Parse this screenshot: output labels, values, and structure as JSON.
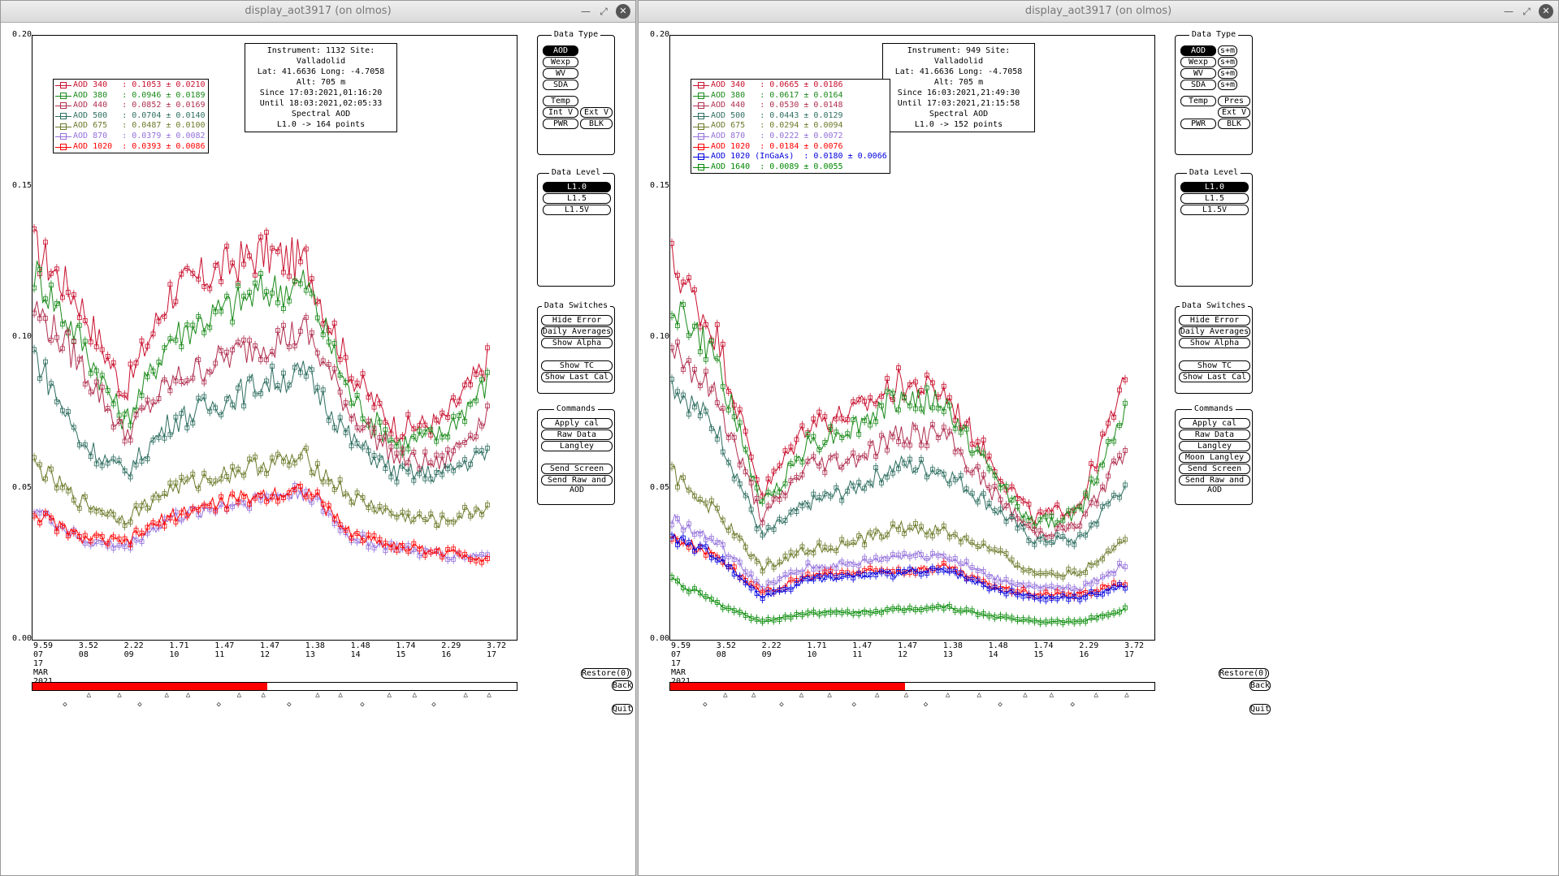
{
  "windows": [
    {
      "title": "display_aot3917 (on olmos)",
      "info": {
        "line1": "Instrument: 1132 Site: Valladolid",
        "line2": "Lat: 41.6636 Long: -4.7058 Alt: 705 m",
        "line3": "Since 17:03:2021,01:16:20",
        "line4": "Until 18:03:2021,02:05:33",
        "line5": "Spectral AOD",
        "line6": "L1.0 -> 164 points"
      },
      "legend": [
        {
          "text": "AOD 340   : 0.1053 ± 0.0210",
          "color": "#c8102e"
        },
        {
          "text": "AOD 380   : 0.0946 ± 0.0189",
          "color": "#1a8a1a"
        },
        {
          "text": "AOD 440   : 0.0852 ± 0.0169",
          "color": "#b03050"
        },
        {
          "text": "AOD 500   : 0.0704 ± 0.0140",
          "color": "#2e6e60"
        },
        {
          "text": "AOD 675   : 0.0487 ± 0.0100",
          "color": "#6b7a2a"
        },
        {
          "text": "AOD 870   : 0.0379 ± 0.0082",
          "color": "#9370db"
        },
        {
          "text": "AOD 1020  : 0.0393 ± 0.0086",
          "color": "#ff0000"
        }
      ],
      "yticks": [
        "0.20",
        "0.15",
        "0.10",
        "0.05",
        "0.00"
      ],
      "xticks": [
        {
          "top": "9.59",
          "bottom": "07"
        },
        {
          "top": "3.52",
          "bottom": "08"
        },
        {
          "top": "2.22",
          "bottom": "09"
        },
        {
          "top": "1.71",
          "bottom": "10"
        },
        {
          "top": "1.47",
          "bottom": "11"
        },
        {
          "top": "1.47",
          "bottom": "12"
        },
        {
          "top": "1.38",
          "bottom": "13"
        },
        {
          "top": "1.48",
          "bottom": "14"
        },
        {
          "top": "1.74",
          "bottom": "15"
        },
        {
          "top": "2.29",
          "bottom": "16"
        },
        {
          "top": "3.72",
          "bottom": "17"
        }
      ],
      "date_labels": [
        "17",
        "MAR",
        "2021"
      ],
      "data_type": {
        "title": "Data Type",
        "buttons": [
          "AOD",
          "Wexp",
          "WV",
          "SDA",
          "Temp",
          "Int V",
          "Ext V",
          "PWR",
          "BLK"
        ]
      },
      "data_level": {
        "title": "Data Level",
        "buttons": [
          "L1.0",
          "L1.5",
          "L1.5V"
        ]
      },
      "data_switches": {
        "title": "Data Switches",
        "buttons": [
          "Hide Error Bars",
          "Daily Averages",
          "Show Alpha",
          "Show TC",
          "Show Last Cal"
        ]
      },
      "commands": {
        "title": "Commands",
        "buttons": [
          "Apply cal",
          "Raw Data",
          "Langley",
          "Send Screen",
          "Send Raw and AOD"
        ]
      },
      "restore": "Restore(0)",
      "back": "Back",
      "quit": "Quit",
      "progress": 0.485
    },
    {
      "title": "display_aot3917 (on olmos)",
      "info": {
        "line1": "Instrument: 949 Site: Valladolid",
        "line2": "Lat: 41.6636 Long: -4.7058 Alt: 705 m",
        "line3": "Since 16:03:2021,21:49:30",
        "line4": "Until 17:03:2021,21:15:58",
        "line5": "Spectral AOD",
        "line6": "L1.0 -> 152 points"
      },
      "legend": [
        {
          "text": "AOD 340   : 0.0665 ± 0.0186",
          "color": "#c8102e"
        },
        {
          "text": "AOD 380   : 0.0617 ± 0.0164",
          "color": "#1a8a1a"
        },
        {
          "text": "AOD 440   : 0.0530 ± 0.0148",
          "color": "#b03050"
        },
        {
          "text": "AOD 500   : 0.0443 ± 0.0129",
          "color": "#2e6e60"
        },
        {
          "text": "AOD 675   : 0.0294 ± 0.0094",
          "color": "#6b7a2a"
        },
        {
          "text": "AOD 870   : 0.0222 ± 0.0072",
          "color": "#9370db"
        },
        {
          "text": "AOD 1020  : 0.0184 ± 0.0076",
          "color": "#ff0000"
        },
        {
          "text": "AOD 1020 (InGaAs)  : 0.0180 ± 0.0066",
          "color": "#0000e0"
        },
        {
          "text": "AOD 1640  : 0.0089 ± 0.0055",
          "color": "#008800"
        }
      ],
      "yticks": [
        "0.20",
        "0.15",
        "0.10",
        "0.05",
        "0.00"
      ],
      "xticks": [
        {
          "top": "9.59",
          "bottom": "07"
        },
        {
          "top": "3.52",
          "bottom": "08"
        },
        {
          "top": "2.22",
          "bottom": "09"
        },
        {
          "top": "1.71",
          "bottom": "10"
        },
        {
          "top": "1.47",
          "bottom": "11"
        },
        {
          "top": "1.47",
          "bottom": "12"
        },
        {
          "top": "1.38",
          "bottom": "13"
        },
        {
          "top": "1.48",
          "bottom": "14"
        },
        {
          "top": "1.74",
          "bottom": "15"
        },
        {
          "top": "2.29",
          "bottom": "16"
        },
        {
          "top": "3.72",
          "bottom": "17"
        }
      ],
      "date_labels": [
        "17",
        "MAR",
        "2021"
      ],
      "data_type": {
        "title": "Data Type",
        "buttons": [
          "AOD",
          "s+m",
          "Wexp",
          "s+m",
          "WV",
          "s+m",
          "SDA",
          "s+m",
          "Temp",
          "Pres",
          "Ext V",
          "PWR",
          "BLK"
        ]
      },
      "data_level": {
        "title": "Data Level",
        "buttons": [
          "L1.0",
          "L1.5",
          "L1.5V"
        ]
      },
      "data_switches": {
        "title": "Data Switches",
        "buttons": [
          "Hide Error Bars",
          "Daily Averages",
          "Show Alpha",
          "Show TC",
          "Show Last Cal"
        ]
      },
      "commands": {
        "title": "Commands",
        "buttons": [
          "Apply cal",
          "Raw Data",
          "Langley",
          "Moon Langley",
          "Send Screen",
          "Send Raw and AOD"
        ]
      },
      "restore": "Restore(0)",
      "back": "Back",
      "quit": "Quit",
      "progress": 0.485
    }
  ],
  "chart_data": [
    {
      "type": "line",
      "x": [
        "07",
        "08",
        "09",
        "10",
        "11",
        "12",
        "13",
        "14",
        "15",
        "16",
        "17"
      ],
      "ylim": [
        0,
        0.2
      ],
      "series": [
        {
          "name": "AOD 340",
          "values": [
            0.13,
            0.112,
            0.082,
            0.115,
            0.122,
            0.128,
            0.125,
            0.088,
            0.07,
            0.072,
            0.092
          ]
        },
        {
          "name": "AOD 380",
          "values": [
            0.122,
            0.1,
            0.072,
            0.1,
            0.108,
            0.115,
            0.118,
            0.08,
            0.065,
            0.068,
            0.085
          ]
        },
        {
          "name": "AOD 440",
          "values": [
            0.11,
            0.092,
            0.068,
            0.085,
            0.092,
            0.098,
            0.102,
            0.075,
            0.06,
            0.058,
            0.075
          ]
        },
        {
          "name": "AOD 500",
          "values": [
            0.095,
            0.066,
            0.055,
            0.072,
            0.078,
            0.085,
            0.088,
            0.066,
            0.055,
            0.055,
            0.062
          ]
        },
        {
          "name": "AOD 675",
          "values": [
            0.058,
            0.046,
            0.04,
            0.05,
            0.054,
            0.058,
            0.06,
            0.047,
            0.041,
            0.039,
            0.044
          ]
        },
        {
          "name": "AOD 870",
          "values": [
            0.044,
            0.033,
            0.031,
            0.04,
            0.044,
            0.047,
            0.049,
            0.034,
            0.03,
            0.028,
            0.028
          ]
        },
        {
          "name": "AOD 1020",
          "values": [
            0.042,
            0.034,
            0.032,
            0.041,
            0.045,
            0.048,
            0.05,
            0.035,
            0.031,
            0.029,
            0.027
          ]
        }
      ]
    },
    {
      "type": "line",
      "x": [
        "07",
        "08",
        "09",
        "10",
        "11",
        "12",
        "13",
        "14",
        "15",
        "16",
        "17"
      ],
      "ylim": [
        0,
        0.2
      ],
      "series": [
        {
          "name": "AOD 340",
          "values": [
            0.125,
            0.1,
            0.048,
            0.072,
            0.075,
            0.085,
            0.082,
            0.06,
            0.04,
            0.045,
            0.085
          ]
        },
        {
          "name": "AOD 380",
          "values": [
            0.112,
            0.092,
            0.044,
            0.065,
            0.07,
            0.08,
            0.078,
            0.056,
            0.038,
            0.042,
            0.078
          ]
        },
        {
          "name": "AOD 440",
          "values": [
            0.098,
            0.08,
            0.04,
            0.058,
            0.06,
            0.068,
            0.068,
            0.05,
            0.035,
            0.038,
            0.063
          ]
        },
        {
          "name": "AOD 500",
          "values": [
            0.085,
            0.07,
            0.034,
            0.045,
            0.05,
            0.058,
            0.056,
            0.045,
            0.033,
            0.033,
            0.052
          ]
        },
        {
          "name": "AOD 675",
          "values": [
            0.055,
            0.042,
            0.024,
            0.03,
            0.032,
            0.037,
            0.036,
            0.03,
            0.022,
            0.022,
            0.034
          ]
        },
        {
          "name": "AOD 870",
          "values": [
            0.04,
            0.032,
            0.017,
            0.024,
            0.025,
            0.028,
            0.028,
            0.021,
            0.017,
            0.017,
            0.025
          ]
        },
        {
          "name": "AOD 1020",
          "values": [
            0.034,
            0.028,
            0.015,
            0.021,
            0.022,
            0.023,
            0.024,
            0.018,
            0.015,
            0.015,
            0.019
          ]
        },
        {
          "name": "AOD 1020 (InGaAs)",
          "values": [
            0.034,
            0.028,
            0.014,
            0.02,
            0.021,
            0.022,
            0.023,
            0.017,
            0.014,
            0.014,
            0.018
          ]
        },
        {
          "name": "AOD 1640",
          "values": [
            0.02,
            0.012,
            0.006,
            0.009,
            0.009,
            0.01,
            0.011,
            0.008,
            0.006,
            0.006,
            0.01
          ]
        }
      ]
    }
  ]
}
